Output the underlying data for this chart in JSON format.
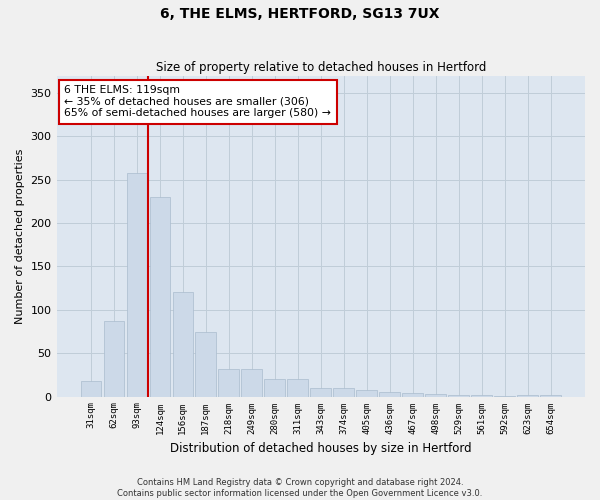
{
  "title": "6, THE ELMS, HERTFORD, SG13 7UX",
  "subtitle": "Size of property relative to detached houses in Hertford",
  "xlabel": "Distribution of detached houses by size in Hertford",
  "ylabel": "Number of detached properties",
  "categories": [
    "31sqm",
    "62sqm",
    "93sqm",
    "124sqm",
    "156sqm",
    "187sqm",
    "218sqm",
    "249sqm",
    "280sqm",
    "311sqm",
    "343sqm",
    "374sqm",
    "405sqm",
    "436sqm",
    "467sqm",
    "498sqm",
    "529sqm",
    "561sqm",
    "592sqm",
    "623sqm",
    "654sqm"
  ],
  "values": [
    18,
    87,
    258,
    230,
    120,
    75,
    32,
    32,
    20,
    20,
    10,
    10,
    7,
    5,
    4,
    3,
    2,
    2,
    1,
    2,
    2
  ],
  "bar_color": "#ccd9e8",
  "bar_edge_color": "#aabcce",
  "grid_color": "#c0cdd8",
  "bg_color": "#dde6f0",
  "property_line_color": "#cc0000",
  "annotation_text": "6 THE ELMS: 119sqm\n← 35% of detached houses are smaller (306)\n65% of semi-detached houses are larger (580) →",
  "annotation_box_color": "#ffffff",
  "annotation_box_edge": "#cc0000",
  "footer": "Contains HM Land Registry data © Crown copyright and database right 2024.\nContains public sector information licensed under the Open Government Licence v3.0.",
  "ylim": [
    0,
    370
  ],
  "yticks": [
    0,
    50,
    100,
    150,
    200,
    250,
    300,
    350
  ],
  "prop_line_bar_index": 3
}
